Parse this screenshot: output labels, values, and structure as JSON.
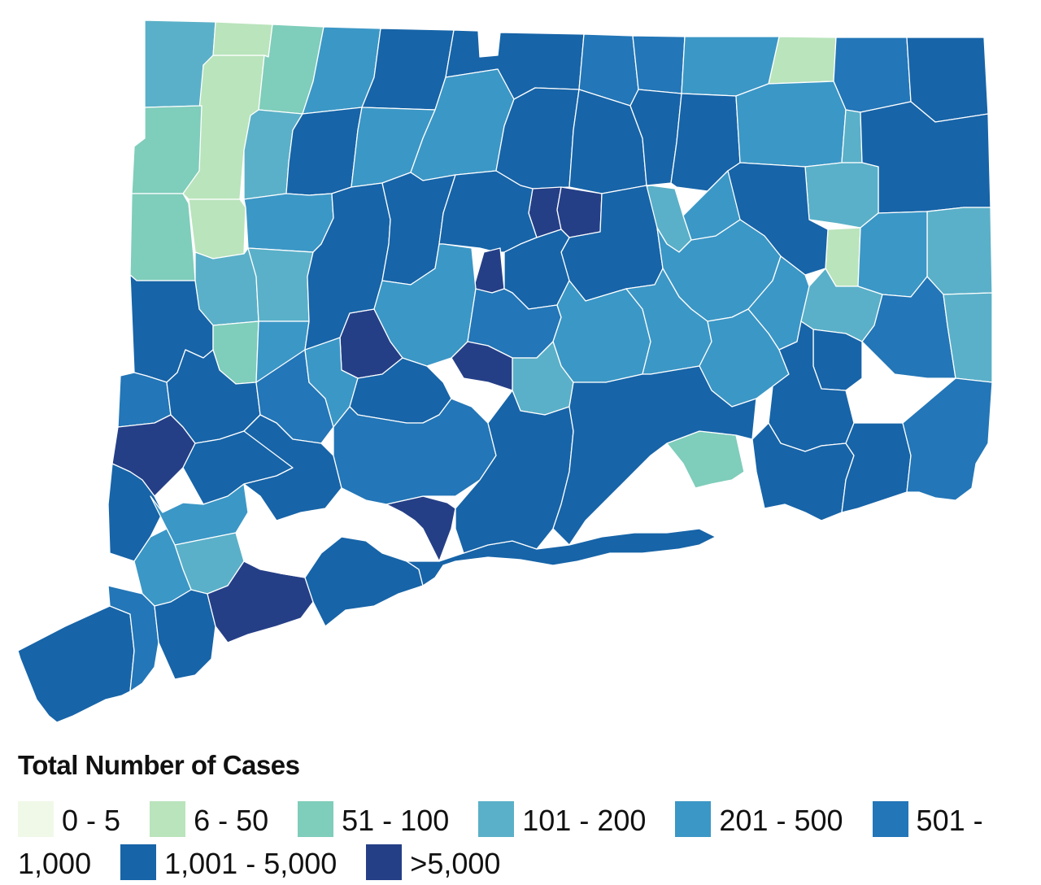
{
  "legend": {
    "title": "Total Number of Cases",
    "items": [
      {
        "label": "0 - 5",
        "color": "#f0f9e8"
      },
      {
        "label": "6 - 50",
        "color": "#bae4bc"
      },
      {
        "label": "51 - 100",
        "color": "#7fcdbb"
      },
      {
        "label": "101 - 200",
        "color": "#5ab0c8"
      },
      {
        "label": "201 - 500",
        "color": "#3b97c6"
      },
      {
        "label": "501 - 1,000",
        "color": "#2376b7"
      },
      {
        "label": "1,001 - 5,000",
        "color": "#1764a8"
      },
      {
        "label": ">5,000",
        "color": "#253f87"
      }
    ]
  },
  "map": {
    "towns": [
      {
        "name": "town-nw-1",
        "bin": "101 - 200"
      },
      {
        "name": "town-nw-2",
        "bin": "6 - 50"
      },
      {
        "name": "town-nw-3",
        "bin": "51 - 100"
      },
      {
        "name": "town-n-1",
        "bin": "6 - 50"
      },
      {
        "name": "town-n-2",
        "bin": "51 - 100"
      },
      {
        "name": "town-n-3",
        "bin": "201 - 500"
      },
      {
        "name": "town-n-4",
        "bin": "1,001 - 5,000"
      },
      {
        "name": "town-n-5",
        "bin": "1,001 - 5,000"
      },
      {
        "name": "town-n-6",
        "bin": "501 - 1,000"
      },
      {
        "name": "town-n-7",
        "bin": "501 - 1,000"
      },
      {
        "name": "town-ne-1",
        "bin": "6 - 50"
      },
      {
        "name": "town-ne-2",
        "bin": "201 - 500"
      },
      {
        "name": "town-ne-3",
        "bin": "501 - 1,000"
      },
      {
        "name": "town-ne-4",
        "bin": "1,001 - 5,000"
      },
      {
        "name": "town-w-1",
        "bin": "51 - 100"
      },
      {
        "name": "town-w-2",
        "bin": "6 - 50"
      },
      {
        "name": "town-w-3",
        "bin": "101 - 200"
      },
      {
        "name": "town-c-1",
        "bin": "1,001 - 5,000"
      },
      {
        "name": "town-c-2",
        "bin": "201 - 500"
      },
      {
        "name": "town-c-3",
        "bin": "201 - 500"
      },
      {
        "name": "town-c-4",
        "bin": "201 - 500"
      },
      {
        "name": "town-c-5",
        "bin": "1,001 - 5,000"
      },
      {
        "name": "town-c-6",
        "bin": "1,001 - 5,000"
      },
      {
        "name": "town-c-7",
        "bin": "1,001 - 5,000"
      },
      {
        "name": "town-c-8",
        "bin": ">5,000"
      },
      {
        "name": "town-c-9",
        "bin": ">5,000"
      },
      {
        "name": "town-c-10",
        "bin": "1,001 - 5,000"
      },
      {
        "name": "town-c-11",
        "bin": "201 - 500"
      },
      {
        "name": "town-c-12",
        "bin": "101 - 200"
      },
      {
        "name": "town-e-1",
        "bin": "1,001 - 5,000"
      },
      {
        "name": "town-e-2",
        "bin": "101 - 200"
      },
      {
        "name": "town-e-3",
        "bin": "6 - 50"
      },
      {
        "name": "town-e-4",
        "bin": "1,001 - 5,000"
      },
      {
        "name": "town-e-5",
        "bin": "101 - 200"
      },
      {
        "name": "town-e-6",
        "bin": "201 - 500"
      },
      {
        "name": "town-w-4",
        "bin": "101 - 200"
      },
      {
        "name": "town-w-5",
        "bin": "1,001 - 5,000"
      },
      {
        "name": "town-w-6",
        "bin": "101 - 200"
      },
      {
        "name": "town-w-7",
        "bin": "51 - 100"
      },
      {
        "name": "town-w-8",
        "bin": "201 - 500"
      },
      {
        "name": "town-c-13",
        "bin": ">5,000"
      },
      {
        "name": "town-c-14",
        "bin": "1,001 - 5,000"
      },
      {
        "name": "town-c-15",
        "bin": "1,001 - 5,000"
      },
      {
        "name": "town-c-16",
        "bin": "1,001 - 5,000"
      },
      {
        "name": "town-c-17",
        "bin": ">5,000"
      },
      {
        "name": "town-c-18",
        "bin": "101 - 200"
      },
      {
        "name": "town-c-19",
        "bin": "1,001 - 5,000"
      },
      {
        "name": "town-c-20",
        "bin": "201 - 500"
      },
      {
        "name": "town-c-21",
        "bin": "201 - 500"
      },
      {
        "name": "town-c-22",
        "bin": "1,001 - 5,000"
      },
      {
        "name": "town-e-7",
        "bin": "201 - 500"
      },
      {
        "name": "town-e-8",
        "bin": "101 - 200"
      },
      {
        "name": "town-e-9",
        "bin": "1,001 - 5,000"
      },
      {
        "name": "town-e-10",
        "bin": "501 - 1,000"
      },
      {
        "name": "town-e-11",
        "bin": "101 - 200"
      },
      {
        "name": "town-sw-1",
        "bin": "501 - 1,000"
      },
      {
        "name": "town-sw-2",
        "bin": ">5,000"
      },
      {
        "name": "town-sw-3",
        "bin": "1,001 - 5,000"
      },
      {
        "name": "town-sw-4",
        "bin": "1,001 - 5,000"
      },
      {
        "name": "town-s-1",
        "bin": "1,001 - 5,000"
      },
      {
        "name": "town-s-2",
        "bin": "501 - 1,000"
      },
      {
        "name": "town-s-3",
        "bin": "201 - 500"
      },
      {
        "name": "town-s-4",
        "bin": "1,001 - 5,000"
      },
      {
        "name": "town-s-5",
        "bin": "201 - 500"
      },
      {
        "name": "town-s-6",
        "bin": "501 - 1,000"
      },
      {
        "name": "town-s-7",
        "bin": "201 - 500"
      },
      {
        "name": "town-s-8",
        "bin": "201 - 500"
      },
      {
        "name": "town-s-9",
        "bin": "101 - 200"
      },
      {
        "name": "town-s-10",
        "bin": "51 - 100"
      },
      {
        "name": "town-s-11",
        "bin": "201 - 500"
      },
      {
        "name": "town-se-1",
        "bin": "1,001 - 5,000"
      },
      {
        "name": "town-se-2",
        "bin": "1,001 - 5,000"
      },
      {
        "name": "town-se-3",
        "bin": "1,001 - 5,000"
      },
      {
        "name": "town-se-4",
        "bin": "501 - 1,000"
      },
      {
        "name": "town-sw-5",
        "bin": "201 - 500"
      },
      {
        "name": "town-sw-6",
        "bin": "101 - 200"
      },
      {
        "name": "town-sw-7",
        "bin": "201 - 500"
      },
      {
        "name": "town-sw-8",
        "bin": "1,001 - 5,000"
      },
      {
        "name": "town-sw-9",
        "bin": "501 - 1,000"
      },
      {
        "name": "town-s-12",
        "bin": "1,001 - 5,000"
      },
      {
        "name": "town-s-13",
        "bin": ">5,000"
      },
      {
        "name": "town-s-14",
        "bin": "1,001 - 5,000"
      },
      {
        "name": "town-s-15",
        "bin": "1,001 - 5,000"
      },
      {
        "name": "town-fc-1",
        "bin": "1,001 - 5,000"
      },
      {
        "name": "town-fc-2",
        "bin": ">5,000"
      },
      {
        "name": "town-fc-3",
        "bin": "501 - 1,000"
      },
      {
        "name": "town-fc-4",
        "bin": ">5,000"
      },
      {
        "name": "town-fc-5",
        "bin": "1,001 - 5,000"
      },
      {
        "name": "town-fc-6",
        "bin": "1,001 - 5,000"
      }
    ]
  }
}
